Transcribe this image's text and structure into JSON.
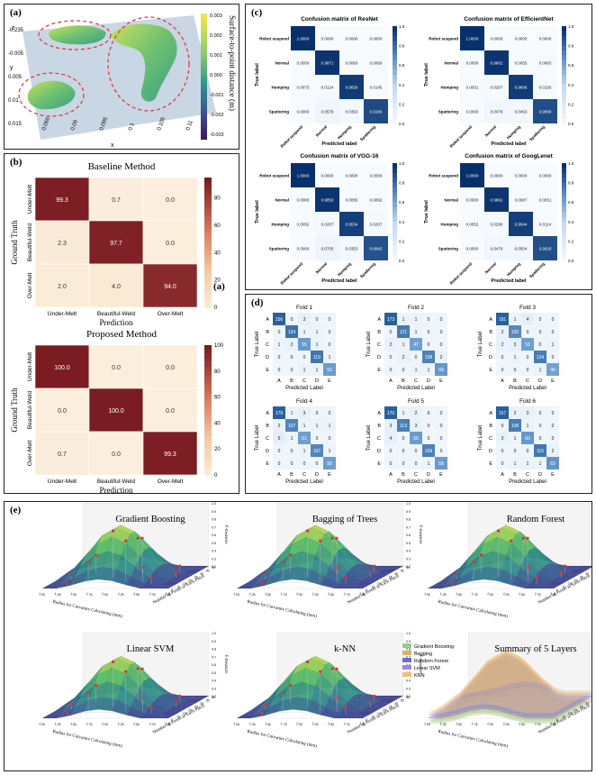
{
  "panel_a": {
    "label": "(a)",
    "colorbar_title": "Surface-to-point distance (m)",
    "colorbar_ticks": [
      "0.003",
      "0.002",
      "0.001",
      "0.000",
      "-0.001",
      "-0.002",
      "-0.003"
    ],
    "y_ticks": [
      "-0.235",
      "-0.005",
      "0.005",
      "0.01",
      "0.015"
    ],
    "x_ticks": [
      "0.065",
      "0.09",
      "0.095",
      "0.1",
      "0.105",
      "0.11"
    ],
    "x_axis": "x",
    "z_axis": "z",
    "y_axis": "y"
  },
  "panel_b": {
    "label": "(b)",
    "inner_label": "(a)",
    "chart_data": [
      {
        "type": "heatmap",
        "title": "Baseline Method",
        "xlabel": "Prediction",
        "ylabel": "Ground Truth",
        "categories": [
          "Under-Melt",
          "Beautiful-Weld",
          "Over-Melt"
        ],
        "values": [
          [
            99.3,
            0.7,
            0.0
          ],
          [
            2.3,
            97.7,
            0.0
          ],
          [
            2.0,
            4.0,
            94.0
          ]
        ],
        "value_labels": [
          [
            "99.3",
            "0.7",
            "0.0"
          ],
          [
            "2.3",
            "97.7",
            "0.0"
          ],
          [
            "2.0",
            "4.0",
            "94.0"
          ]
        ],
        "colorbar_ticks": [
          "0",
          "20",
          "40",
          "60",
          "80"
        ],
        "colorbar_max": 95
      },
      {
        "type": "heatmap",
        "title": "Proposed Method",
        "xlabel": "Prediction",
        "ylabel": "Ground Truth",
        "categories": [
          "Under-Melt",
          "Beautiful-Weld",
          "Over-Melt"
        ],
        "values": [
          [
            100.0,
            0.0,
            0.0
          ],
          [
            0.0,
            100.0,
            0.0
          ],
          [
            0.7,
            0.0,
            99.3
          ]
        ],
        "value_labels": [
          [
            "100.0",
            "0.0",
            "0.0"
          ],
          [
            "0.0",
            "100.0",
            "0.0"
          ],
          [
            "0.7",
            "0.0",
            "99.3"
          ]
        ],
        "colorbar_ticks": [
          "0",
          "20",
          "40",
          "60",
          "80",
          "100"
        ],
        "colorbar_max": 100
      }
    ]
  },
  "panel_c": {
    "label": "(c)",
    "chart_data": [
      {
        "type": "heatmap",
        "title": "Confusion matrix of ResNet",
        "xlabel": "Predicted label",
        "ylabel": "True label",
        "categories": [
          "Robot suspend",
          "Normal",
          "Humping",
          "Spattering"
        ],
        "values": [
          [
            1.0,
            0.0,
            0.0,
            0.0
          ],
          [
            0.0,
            0.9871,
            0.006,
            0.0069
          ],
          [
            0.0073,
            0.0124,
            0.9659,
            0.0145
          ],
          [
            0.0,
            0.0579,
            0.0353,
            0.9166
          ]
        ],
        "value_labels": [
          [
            "1.0000",
            "0.0000",
            "0.0000",
            "0.0000"
          ],
          [
            "0.0000",
            "0.9871",
            "0.0060",
            "0.0069"
          ],
          [
            "0.0073",
            "0.0124",
            "0.9659",
            "0.0145"
          ],
          [
            "0.0000",
            "0.0579",
            "0.0353",
            "0.9166"
          ]
        ],
        "colorbar_ticks": [
          "0.0",
          "0.2",
          "0.4",
          "0.6",
          "0.8",
          "1.0"
        ]
      },
      {
        "type": "heatmap",
        "title": "Confusion matrix of EfficientNet",
        "xlabel": "Predicted label",
        "ylabel": "True label",
        "categories": [
          "Robot suspend",
          "Normal",
          "Humping",
          "Spattering"
        ],
        "values": [
          [
            1.0,
            0.0,
            0.0,
            0.0
          ],
          [
            0.0,
            0.9862,
            0.0055,
            0.0083
          ],
          [
            0.0031,
            0.0207,
            0.9606,
            0.0156
          ],
          [
            0.0,
            0.0479,
            0.0453,
            0.9068
          ]
        ],
        "value_labels": [
          [
            "1.0000",
            "0.0000",
            "0.0000",
            "0.0000"
          ],
          [
            "0.0000",
            "0.9862",
            "0.0055",
            "0.0083"
          ],
          [
            "0.0031",
            "0.0207",
            "0.9606",
            "0.0156"
          ],
          [
            "0.0000",
            "0.0479",
            "0.0453",
            "0.9068"
          ]
        ],
        "colorbar_ticks": [
          "0.0",
          "0.2",
          "0.4",
          "0.6",
          "0.8",
          "1.0"
        ]
      },
      {
        "type": "heatmap",
        "title": "Confusion matrix of VGG-16",
        "xlabel": "Predicted label",
        "ylabel": "True label",
        "categories": [
          "Robot suspend",
          "Normal",
          "Humping",
          "Spattering"
        ],
        "values": [
          [
            1.0,
            0.0,
            0.0,
            0.0
          ],
          [
            0.0,
            0.9853,
            0.0055,
            0.0092
          ],
          [
            0.0052,
            0.0207,
            0.9534,
            0.0207
          ],
          [
            0.0,
            0.0705,
            0.0353,
            0.8942
          ]
        ],
        "value_labels": [
          [
            "1.0000",
            "0.0000",
            "0.0000",
            "0.0000"
          ],
          [
            "0.0000",
            "0.9853",
            "0.0055",
            "0.0092"
          ],
          [
            "0.0052",
            "0.0207",
            "0.9534",
            "0.0207"
          ],
          [
            "0.0000",
            "0.0705",
            "0.0353",
            "0.8942"
          ]
        ],
        "colorbar_ticks": [
          "0.0",
          "0.2",
          "0.4",
          "0.6",
          "0.8",
          "1.0"
        ]
      },
      {
        "type": "heatmap",
        "title": "Confusion matrix of GoogLenet",
        "xlabel": "Predicted label",
        "ylabel": "True label",
        "categories": [
          "Robot suspend",
          "Normal",
          "Humping",
          "Spattering"
        ],
        "values": [
          [
            1.0,
            0.0,
            0.0,
            0.0
          ],
          [
            0.0,
            0.9862,
            0.0087,
            0.0051
          ],
          [
            0.0052,
            0.029,
            0.9544,
            0.0114
          ],
          [
            0.0,
            0.0479,
            0.0504,
            0.9018
          ]
        ],
        "value_labels": [
          [
            "1.0000",
            "0.0000",
            "0.0000",
            "0.0000"
          ],
          [
            "0.0000",
            "0.9862",
            "0.0087",
            "0.0051"
          ],
          [
            "0.0052",
            "0.0290",
            "0.9544",
            "0.0114"
          ],
          [
            "0.0000",
            "0.0479",
            "0.0504",
            "0.9018"
          ]
        ],
        "colorbar_ticks": [
          "0.0",
          "0.2",
          "0.4",
          "0.6",
          "0.8",
          "1.0"
        ]
      }
    ]
  },
  "panel_d": {
    "label": "(d)",
    "chart_data": [
      {
        "type": "heatmap",
        "title": "Fold 1",
        "xlabel": "Predicted Label",
        "ylabel": "True Label",
        "categories": [
          "A",
          "B",
          "C",
          "D",
          "E"
        ],
        "values": [
          [
            156,
            0,
            3,
            0,
            0
          ],
          [
            0,
            124,
            1,
            1,
            0
          ],
          [
            1,
            2,
            55,
            1,
            0
          ],
          [
            0,
            0,
            0,
            119,
            1
          ],
          [
            0,
            0,
            1,
            1,
            53
          ]
        ]
      },
      {
        "type": "heatmap",
        "title": "Fold 2",
        "xlabel": "Predicted Label",
        "ylabel": "True Label",
        "categories": [
          "A",
          "B",
          "C",
          "D",
          "E"
        ],
        "values": [
          [
            173,
            1,
            1,
            0,
            0
          ],
          [
            0,
            121,
            1,
            0,
            0
          ],
          [
            2,
            1,
            47,
            0,
            0
          ],
          [
            0,
            2,
            0,
            108,
            2
          ],
          [
            0,
            0,
            1,
            1,
            68
          ]
        ]
      },
      {
        "type": "heatmap",
        "title": "Fold 3",
        "xlabel": "Predicted Label",
        "ylabel": "True Label",
        "categories": [
          "A",
          "B",
          "C",
          "D",
          "E"
        ],
        "values": [
          [
            181,
            1,
            4,
            0,
            0
          ],
          [
            2,
            100,
            0,
            0,
            0
          ],
          [
            2,
            3,
            53,
            0,
            1
          ],
          [
            0,
            1,
            0,
            124,
            0
          ],
          [
            0,
            0,
            0,
            1,
            46
          ]
        ]
      },
      {
        "type": "heatmap",
        "title": "Fold 4",
        "xlabel": "Predicted Label",
        "ylabel": "True Label",
        "categories": [
          "A",
          "B",
          "C",
          "D",
          "E"
        ],
        "values": [
          [
            179,
            1,
            3,
            0,
            0
          ],
          [
            2,
            107,
            1,
            1,
            1
          ],
          [
            5,
            1,
            51,
            0,
            0
          ],
          [
            0,
            0,
            1,
            107,
            1
          ],
          [
            0,
            0,
            0,
            0,
            58
          ]
        ]
      },
      {
        "type": "heatmap",
        "title": "Fold 5",
        "xlabel": "Predicted Label",
        "ylabel": "True Label",
        "categories": [
          "A",
          "B",
          "C",
          "D",
          "E"
        ],
        "values": [
          [
            170,
            1,
            2,
            0,
            0
          ],
          [
            3,
            113,
            3,
            0,
            0
          ],
          [
            4,
            0,
            55,
            0,
            0
          ],
          [
            0,
            0,
            0,
            109,
            0
          ],
          [
            0,
            0,
            0,
            1,
            58
          ]
        ]
      },
      {
        "type": "heatmap",
        "title": "Fold 6",
        "xlabel": "Predicted Label",
        "ylabel": "True Label",
        "categories": [
          "A",
          "B",
          "C",
          "D",
          "E"
        ],
        "values": [
          [
            157,
            2,
            3,
            0,
            0
          ],
          [
            0,
            108,
            1,
            0,
            0
          ],
          [
            3,
            1,
            60,
            0,
            0
          ],
          [
            0,
            0,
            0,
            115,
            2
          ],
          [
            0,
            1,
            1,
            1,
            63
          ]
        ]
      }
    ]
  },
  "panel_e": {
    "label": "(e)",
    "xlabel": "Radius for Curvature Calculating (mm)",
    "ylabel": "Number of Points in Each Patch",
    "zlabel": "F-measure",
    "x_ticks": [
      "1.00",
      "1.25",
      "1.50",
      "1.75",
      "2.00",
      "2.25",
      "2.50",
      "2.75",
      "3.00"
    ],
    "y_ticks": [
      "5",
      "10",
      "15",
      "20",
      "25",
      "30",
      "35",
      "40"
    ],
    "z_ticks": [
      "0.2",
      "0.3",
      "0.4",
      "0.5",
      "0.6",
      "0.7",
      "0.8",
      "0.9",
      "1.0"
    ],
    "chart_data": [
      {
        "type": "surface",
        "title": "Gradient Boosting",
        "peak": 0.9
      },
      {
        "type": "surface",
        "title": "Bagging of Trees",
        "peak": 0.9
      },
      {
        "type": "surface",
        "title": "Random Forest",
        "peak": 0.9
      },
      {
        "type": "surface",
        "title": "Linear SVM",
        "peak": 0.88
      },
      {
        "type": "surface",
        "title": "k-NN",
        "peak": 0.88
      },
      {
        "type": "surface",
        "title": "Summary of 5 Layers",
        "peak": 0.9,
        "legend": [
          "Gradient Boosting",
          "Bagging",
          "Random Forest",
          "Linear SVM",
          "KNN"
        ],
        "legend_colors": [
          "#8fcf8a",
          "#d7b46a",
          "#6b6fd1",
          "#9a8bd8",
          "#f0c070"
        ]
      }
    ]
  }
}
